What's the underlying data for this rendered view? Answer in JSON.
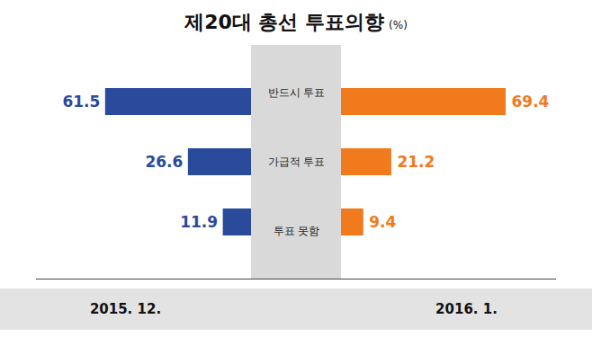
{
  "chart_data": {
    "type": "bar",
    "title": "제20대 총선 투표의향",
    "subtitle": "(%)",
    "orientation": "horizontal",
    "data_labels": true,
    "tick_labels": false,
    "categories": [
      "반드시 투표",
      "가급적 투표",
      "투표 못함"
    ],
    "series": [
      {
        "name": "2015. 12.",
        "color": "#2a4a9c",
        "values": [
          61.5,
          26.6,
          11.9
        ]
      },
      {
        "name": "2016. 1.",
        "color": "#f07a1c",
        "values": [
          69.4,
          21.2,
          9.4
        ]
      }
    ]
  }
}
